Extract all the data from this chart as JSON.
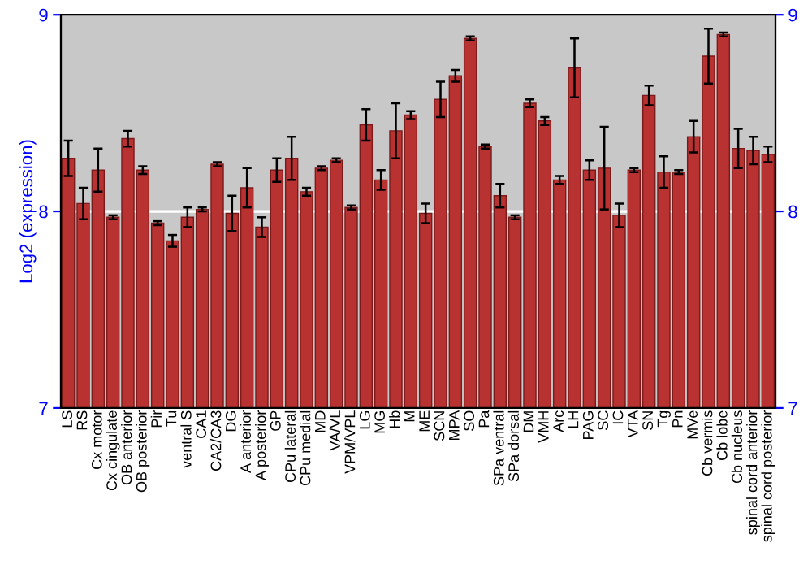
{
  "chart_data": {
    "type": "bar",
    "ylabel": "Log2 (expression)",
    "categories": [
      "LS",
      "RS",
      "Cx motor",
      "Cx cingulate",
      "OB anterior",
      "OB posterior",
      "Pir",
      "Tu",
      "ventral S",
      "CA1",
      "CA2/CA3",
      "DG",
      "A anterior",
      "A posterior",
      "GP",
      "CPu lateral",
      "CPu medial",
      "MD",
      "VA/VL",
      "VPM/VPL",
      "LG",
      "MG",
      "Hb",
      "M",
      "ME",
      "SCN",
      "MPA",
      "SO",
      "Pa",
      "SPa ventral",
      "SPa dorsal",
      "DM",
      "VMH",
      "Arc",
      "LH",
      "PAG",
      "SC",
      "IC",
      "VTA",
      "SN",
      "Tg",
      "Pn",
      "MVe",
      "Cb vermis",
      "Cb lobe",
      "Cb nucleus",
      "spinal cord anterior",
      "spinal cord posterior"
    ],
    "values": [
      8.27,
      8.04,
      8.21,
      7.97,
      8.37,
      8.21,
      7.94,
      7.85,
      7.97,
      8.01,
      8.24,
      7.99,
      8.12,
      7.92,
      8.21,
      8.27,
      8.1,
      8.22,
      8.26,
      8.02,
      8.44,
      8.16,
      8.41,
      8.49,
      7.99,
      8.57,
      8.69,
      8.88,
      8.33,
      8.08,
      7.97,
      8.55,
      8.46,
      8.16,
      8.73,
      8.21,
      8.22,
      7.98,
      8.21,
      8.59,
      8.2,
      8.2,
      8.38,
      8.79,
      8.9,
      8.32,
      8.31,
      8.29
    ],
    "errors": [
      0.09,
      0.08,
      0.11,
      0.01,
      0.04,
      0.02,
      0.01,
      0.03,
      0.05,
      0.01,
      0.01,
      0.09,
      0.1,
      0.05,
      0.06,
      0.11,
      0.02,
      0.01,
      0.01,
      0.01,
      0.08,
      0.05,
      0.14,
      0.02,
      0.05,
      0.09,
      0.03,
      0.01,
      0.01,
      0.06,
      0.01,
      0.02,
      0.02,
      0.02,
      0.15,
      0.05,
      0.21,
      0.06,
      0.01,
      0.05,
      0.08,
      0.01,
      0.08,
      0.14,
      0.01,
      0.1,
      0.07,
      0.04
    ],
    "color": "#b83232",
    "ylim": [
      7,
      9
    ],
    "yticks": [
      7,
      8,
      9
    ],
    "y2lim": [
      7,
      9
    ],
    "y2ticks": [
      7,
      8,
      9
    ],
    "grid": "y"
  }
}
